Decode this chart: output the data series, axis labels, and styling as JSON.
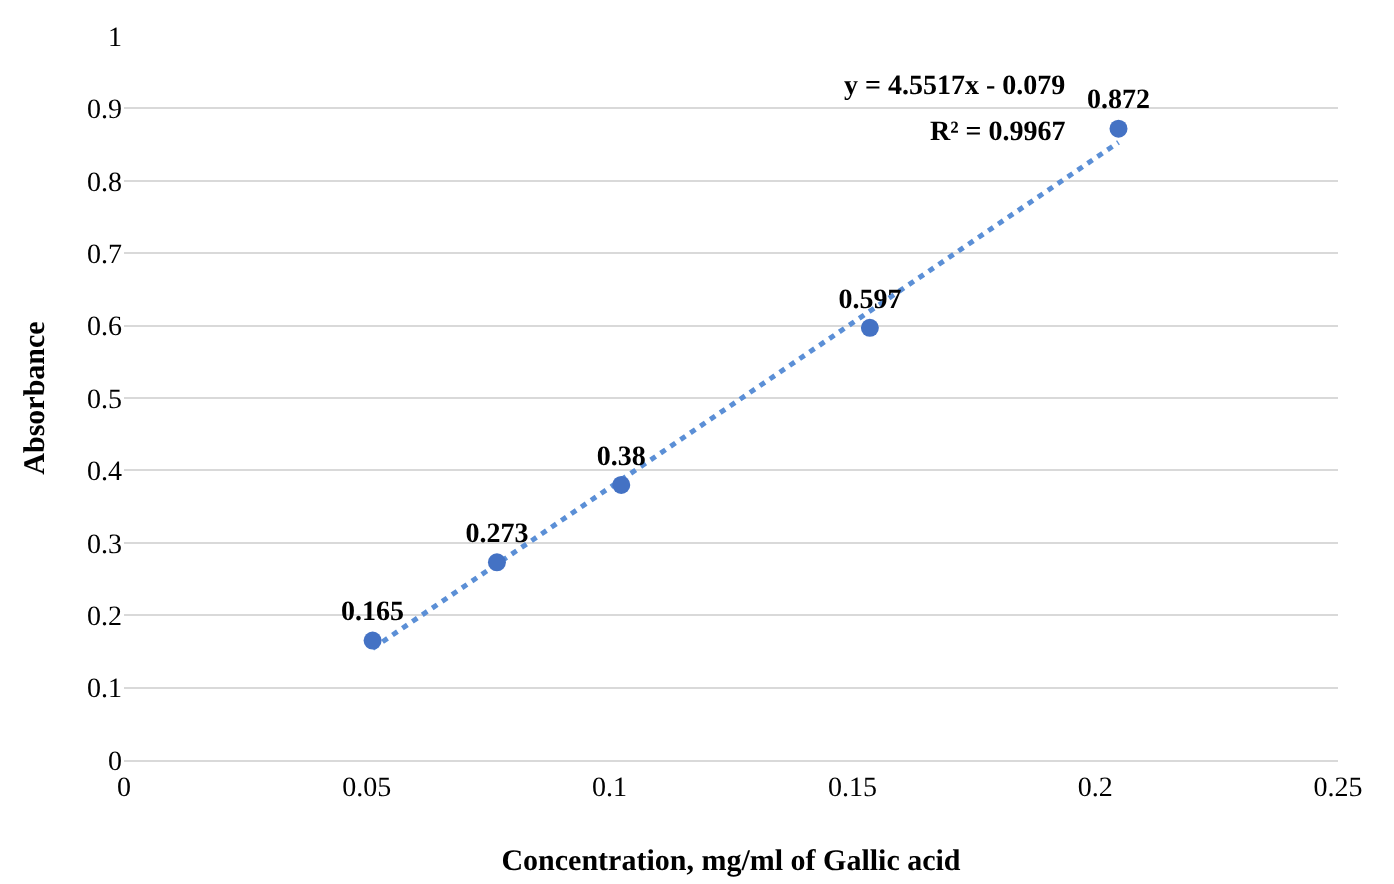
{
  "chart_data": {
    "type": "scatter",
    "xlabel": "Concentration, mg/ml of Gallic acid",
    "ylabel": "Absorbance",
    "series": [
      {
        "color": "#4472c4",
        "x": [
          0.0512,
          0.0768,
          0.1024,
          0.1536,
          0.2048
        ],
        "values": [
          0.165,
          0.273,
          0.38,
          0.597,
          0.872
        ],
        "value_labels": [
          "0.165",
          "0.273",
          "0.38",
          "0.597",
          "0.872"
        ]
      },
      {
        "type": "line",
        "color": "#5b8fd6",
        "line_style": "dotted",
        "marker": "none",
        "x": [
          0.0512,
          0.2048
        ],
        "values": [
          0.154,
          0.853
        ]
      }
    ],
    "marker": "circle",
    "xlim": [
      0,
      0.25
    ],
    "xticks": [
      0,
      0.05,
      0.1,
      0.15,
      0.2,
      0.25
    ],
    "ylim": [
      0,
      1
    ],
    "yticks": [
      0,
      0.1,
      0.2,
      0.3,
      0.4,
      0.5,
      0.6,
      0.7,
      0.8,
      0.9,
      1
    ],
    "grid": "y",
    "annotations": [
      "y = 4.5517x - 0.079",
      "R² = 0.9967"
    ]
  }
}
